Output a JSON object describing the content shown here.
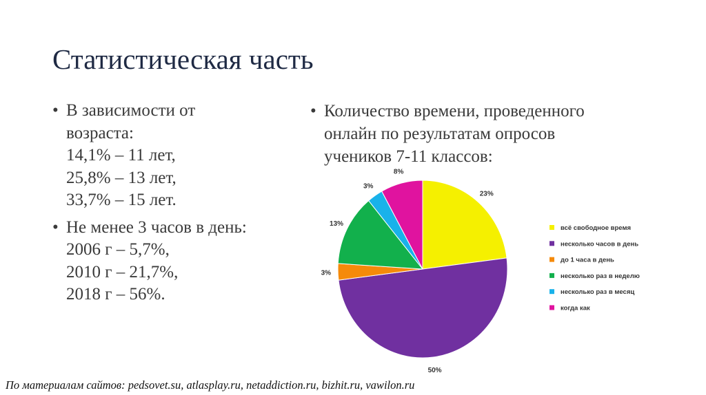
{
  "slide": {
    "title": "Статистическая часть",
    "left_bullets": [
      {
        "lines": [
          "В зависимости от",
          "возраста:",
          "14,1% – 11 лет,",
          "25,8% – 13 лет,",
          "33,7% – 15 лет."
        ]
      },
      {
        "lines": [
          "Не менее 3 часов в день:",
          "2006 г – 5,7%,",
          "2010 г – 21,7%,",
          "2018 г – 56%."
        ]
      }
    ],
    "right_bullet": {
      "lines": [
        "Количество времени, проведенного",
        "онлайн по результатам опросов",
        "учеников 7-11 классов:"
      ]
    },
    "bullet_char": "•",
    "footer": "По материалам сайтов: pedsovet.su, atlasplay.ru, netaddiction.ru, bizhit.ru, vawilon.ru"
  },
  "chart_data": {
    "type": "pie",
    "title": "",
    "categories": [
      "всё свободное время",
      "несколько часов в день",
      "до 1 часа в день",
      "несколько раз в неделю",
      "несколько раз в месяц",
      "когда как"
    ],
    "values": [
      23,
      50,
      3,
      13,
      3,
      8
    ],
    "labels": [
      "23%",
      "50%",
      "3%",
      "13%",
      "3%",
      "8%"
    ],
    "colors": [
      "#f5f000",
      "#7030a0",
      "#f58a0a",
      "#12b04c",
      "#19b2ea",
      "#e0139f"
    ],
    "legend_position": "right",
    "start": "top, clockwise"
  }
}
